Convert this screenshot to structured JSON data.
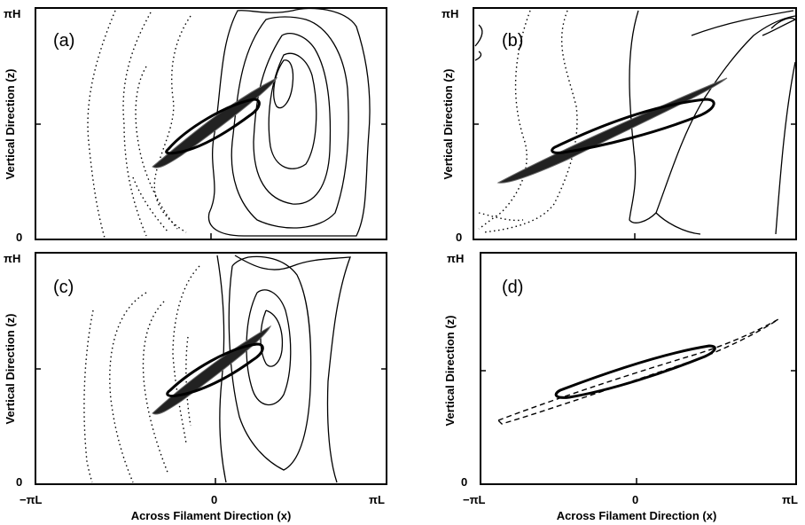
{
  "figure": {
    "xlabel": "Across Filament Direction (x)",
    "ylabel": "Vertical Direction (z)",
    "x_ticks": [
      "−πL",
      "0",
      "πL"
    ],
    "y_ticks": [
      "πH",
      "0"
    ],
    "panels": [
      {
        "label": "(a)"
      },
      {
        "label": "(b)"
      },
      {
        "label": "(c)"
      },
      {
        "label": "(d)"
      }
    ]
  }
}
